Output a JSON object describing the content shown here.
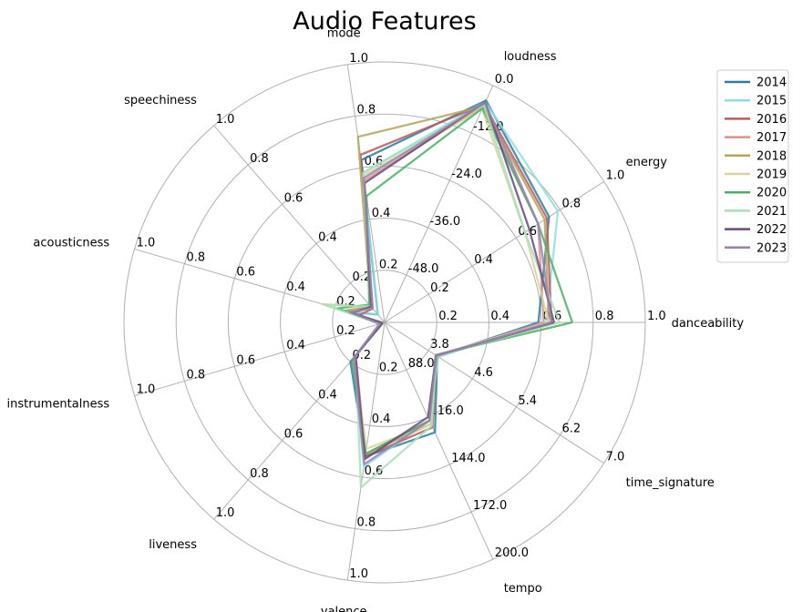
{
  "chart_data": {
    "type": "radar",
    "title": "Audio Features",
    "axes": [
      {
        "name": "danceability",
        "min": 0,
        "max": 1,
        "ticks": [
          "0.2",
          "0.4",
          "0.6",
          "0.8",
          "1.0"
        ]
      },
      {
        "name": "energy",
        "min": 0,
        "max": 1,
        "ticks": [
          "0.2",
          "0.4",
          "0.6",
          "0.8",
          "1.0"
        ]
      },
      {
        "name": "loudness",
        "min": -60,
        "max": 0,
        "ticks": [
          "-48.0",
          "-36.0",
          "-24.0",
          "-12.0",
          "0.0"
        ]
      },
      {
        "name": "mode",
        "min": 0,
        "max": 1,
        "ticks": [
          "0.2",
          "0.4",
          "0.6",
          "0.8",
          "1.0"
        ]
      },
      {
        "name": "speechiness",
        "min": 0,
        "max": 1,
        "ticks": [
          "0.2",
          "0.4",
          "0.6",
          "0.8",
          "1.0"
        ]
      },
      {
        "name": "acousticness",
        "min": 0,
        "max": 1,
        "ticks": [
          "0.2",
          "0.4",
          "0.6",
          "0.8",
          "1.0"
        ]
      },
      {
        "name": "instrumentalness",
        "min": 0,
        "max": 1,
        "ticks": [
          "0.2",
          "0.4",
          "0.6",
          "0.8",
          "1.0"
        ]
      },
      {
        "name": "liveness",
        "min": 0,
        "max": 1,
        "ticks": [
          "0.2",
          "0.4",
          "0.6",
          "0.8",
          "1.0"
        ]
      },
      {
        "name": "valence",
        "min": 0,
        "max": 1,
        "ticks": [
          "0.2",
          "0.4",
          "0.6",
          "0.8",
          "1.0"
        ]
      },
      {
        "name": "tempo",
        "min": 60,
        "max": 200,
        "ticks": [
          "88.0",
          "116.0",
          "144.0",
          "172.0",
          "200.0"
        ]
      },
      {
        "name": "time_signature",
        "min": 3,
        "max": 7,
        "ticks": [
          "3.8",
          "4.6",
          "5.4",
          "6.2",
          "7.0"
        ]
      }
    ],
    "legend_position": "upper-right",
    "series": [
      {
        "name": "2014",
        "color": "#2a7f9e",
        "values": [
          0.59,
          0.75,
          -3.8,
          0.63,
          0.04,
          0.14,
          0.01,
          0.2,
          0.52,
          125,
          3.96
        ]
      },
      {
        "name": "2015",
        "color": "#8fdde0",
        "values": [
          0.62,
          0.79,
          -4.2,
          0.58,
          0.04,
          0.13,
          0.01,
          0.18,
          0.56,
          118,
          3.98
        ]
      },
      {
        "name": "2016",
        "color": "#b85c5c",
        "values": [
          0.64,
          0.74,
          -4.8,
          0.65,
          0.07,
          0.1,
          0.02,
          0.18,
          0.52,
          122,
          3.94
        ]
      },
      {
        "name": "2017",
        "color": "#d8928a",
        "values": [
          0.61,
          0.7,
          -5.2,
          0.55,
          0.08,
          0.15,
          0.02,
          0.17,
          0.51,
          118,
          3.95
        ]
      },
      {
        "name": "2018",
        "color": "#b5a55e",
        "values": [
          0.63,
          0.73,
          -5.3,
          0.72,
          0.08,
          0.16,
          0.02,
          0.18,
          0.51,
          120,
          3.95
        ]
      },
      {
        "name": "2019",
        "color": "#d9d3a0",
        "values": [
          0.63,
          0.64,
          -6.0,
          0.57,
          0.08,
          0.25,
          0.01,
          0.18,
          0.49,
          120,
          3.93
        ]
      },
      {
        "name": "2020",
        "color": "#4caf69",
        "values": [
          0.72,
          0.7,
          -5.8,
          0.49,
          0.09,
          0.19,
          0.01,
          0.19,
          0.51,
          118,
          3.93
        ]
      },
      {
        "name": "2021",
        "color": "#a8dfb8",
        "values": [
          0.67,
          0.64,
          -5.0,
          0.58,
          0.08,
          0.24,
          0.02,
          0.17,
          0.64,
          121,
          3.94
        ]
      },
      {
        "name": "2022",
        "color": "#6a4a7a",
        "values": [
          0.65,
          0.66,
          -4.2,
          0.54,
          0.08,
          0.13,
          0.01,
          0.17,
          0.53,
          116,
          3.94
        ]
      },
      {
        "name": "2023",
        "color": "#9a82b0",
        "values": [
          0.64,
          0.7,
          -4.4,
          0.56,
          0.07,
          0.14,
          0.02,
          0.18,
          0.55,
          118,
          3.94
        ]
      }
    ]
  }
}
